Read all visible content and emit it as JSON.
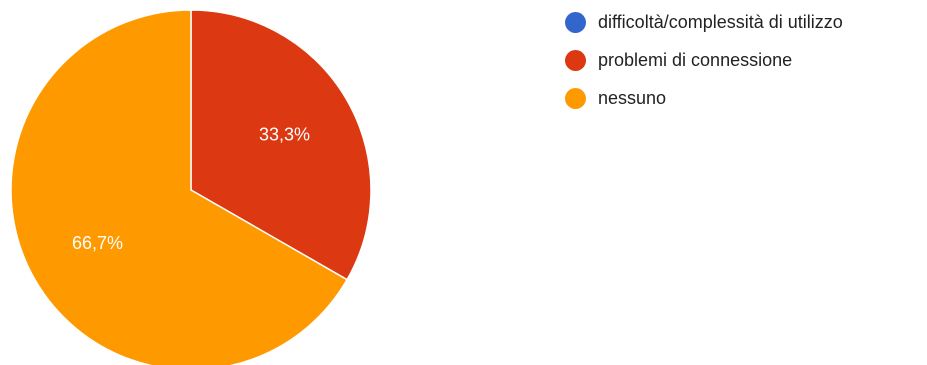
{
  "chart_data": {
    "type": "pie",
    "categories": [
      "difficoltà/complessità di utilizzo",
      "problemi di connessione",
      "nessuno"
    ],
    "values": [
      0,
      33.3,
      66.7
    ],
    "value_labels": [
      "",
      "33,3%",
      "66,7%"
    ],
    "colors": [
      "#3366cc",
      "#dc3912",
      "#ff9900"
    ],
    "legend_position": "right",
    "start_angle_deg": 90,
    "direction": "clockwise"
  }
}
